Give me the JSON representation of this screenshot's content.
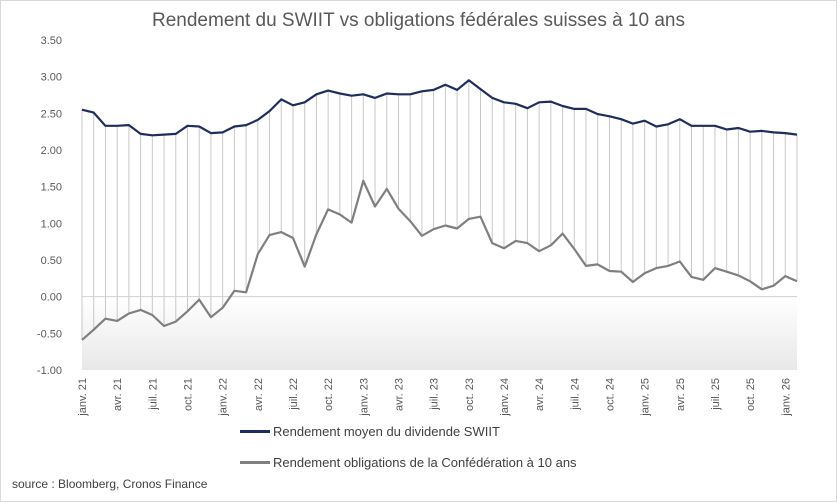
{
  "chart_data": {
    "type": "line",
    "title": "Rendement du SWIIT vs obligations fédérales suisses à 10 ans",
    "xlabel": "",
    "ylabel": "",
    "ylim": [
      -1.0,
      3.5
    ],
    "y_ticks": [
      "3.50",
      "3.00",
      "2.50",
      "2.00",
      "1.50",
      "1.00",
      "0.50",
      "0.00",
      "-0.50",
      "-1.00"
    ],
    "y_tick_values": [
      3.5,
      3.0,
      2.5,
      2.0,
      1.5,
      1.0,
      0.5,
      0.0,
      -0.5,
      -1.0
    ],
    "x_tick_labels": [
      {
        "index": 0,
        "label": "janv. 21"
      },
      {
        "index": 3,
        "label": "avr. 21"
      },
      {
        "index": 6,
        "label": "juil. 21"
      },
      {
        "index": 9,
        "label": "oct. 21"
      },
      {
        "index": 12,
        "label": "janv. 22"
      },
      {
        "index": 15,
        "label": "avr. 22"
      },
      {
        "index": 18,
        "label": "juil. 22"
      },
      {
        "index": 21,
        "label": "oct. 22"
      },
      {
        "index": 24,
        "label": "janv. 23"
      },
      {
        "index": 27,
        "label": "avr. 23"
      },
      {
        "index": 30,
        "label": "juil. 23"
      },
      {
        "index": 33,
        "label": "oct. 23"
      },
      {
        "index": 36,
        "label": "janv. 24"
      },
      {
        "index": 39,
        "label": "avr. 24"
      },
      {
        "index": 42,
        "label": "juil. 24"
      },
      {
        "index": 45,
        "label": "oct. 24"
      },
      {
        "index": 48,
        "label": "janv. 25"
      },
      {
        "index": 51,
        "label": "avr. 25"
      },
      {
        "index": 54,
        "label": "juil. 25"
      },
      {
        "index": 57,
        "label": "oct. 25"
      },
      {
        "index": 60,
        "label": "janv. 26"
      }
    ],
    "series": [
      {
        "name": "Rendement moyen du dividende SWIIT",
        "color": "#1f2d5c",
        "values": [
          2.55,
          2.51,
          2.33,
          2.33,
          2.34,
          2.22,
          2.2,
          2.21,
          2.22,
          2.33,
          2.32,
          2.23,
          2.24,
          2.32,
          2.34,
          2.41,
          2.53,
          2.69,
          2.61,
          2.65,
          2.76,
          2.81,
          2.77,
          2.74,
          2.76,
          2.71,
          2.77,
          2.76,
          2.76,
          2.8,
          2.82,
          2.89,
          2.82,
          2.95,
          2.83,
          2.71,
          2.65,
          2.63,
          2.57,
          2.65,
          2.66,
          2.6,
          2.56,
          2.56,
          2.49,
          2.46,
          2.42,
          2.36,
          2.4,
          2.32,
          2.35,
          2.42,
          2.33,
          2.33,
          2.33,
          2.28,
          2.3,
          2.25,
          2.26,
          2.24,
          2.23,
          2.21
        ]
      },
      {
        "name": "Rendement obligations de la Confédération à 10 ans",
        "color": "#7f7f7f",
        "values": [
          -0.59,
          -0.45,
          -0.3,
          -0.33,
          -0.23,
          -0.18,
          -0.25,
          -0.4,
          -0.34,
          -0.2,
          -0.04,
          -0.28,
          -0.15,
          0.08,
          0.06,
          0.58,
          0.84,
          0.88,
          0.8,
          0.41,
          0.85,
          1.19,
          1.12,
          1.01,
          1.58,
          1.23,
          1.47,
          1.2,
          1.03,
          0.83,
          0.92,
          0.97,
          0.93,
          1.06,
          1.09,
          0.73,
          0.66,
          0.76,
          0.73,
          0.62,
          0.7,
          0.86,
          0.65,
          0.42,
          0.44,
          0.35,
          0.34,
          0.2,
          0.32,
          0.39,
          0.42,
          0.48,
          0.27,
          0.23,
          0.39,
          0.34,
          0.29,
          0.21,
          0.1,
          0.15,
          0.28,
          0.21
        ]
      }
    ]
  },
  "source": "source : Bloomberg, Cronos Finance"
}
